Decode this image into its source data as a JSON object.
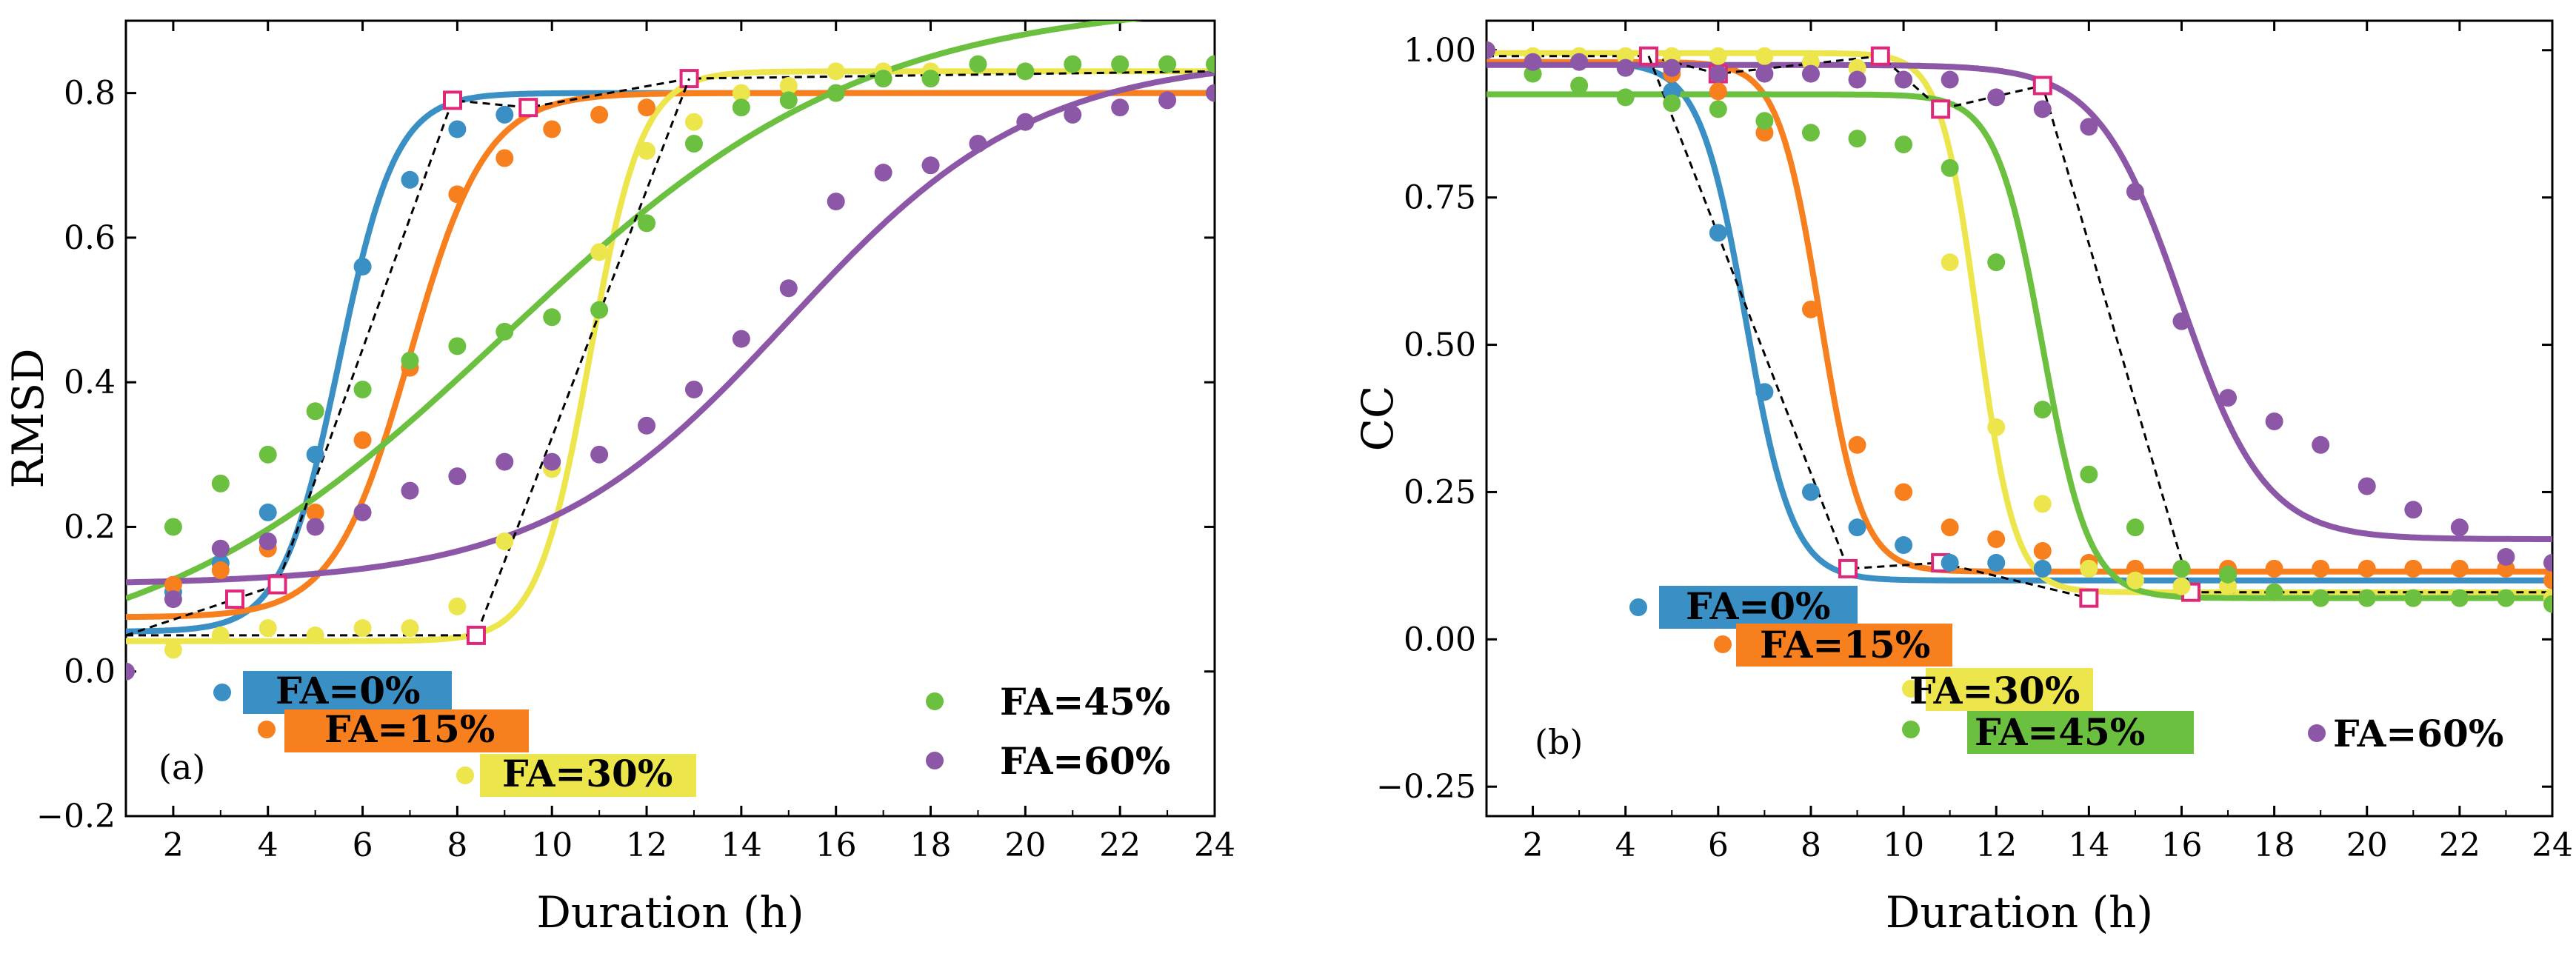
{
  "chart_data": [
    {
      "type": "scatter",
      "panel_label": "(a)",
      "xlabel": "Duration (h)",
      "ylabel": "RMSD",
      "xlim": [
        1,
        24
      ],
      "ylim": [
        -0.2,
        0.9
      ],
      "xticks": [
        2,
        4,
        6,
        8,
        10,
        12,
        14,
        16,
        18,
        20,
        22,
        24
      ],
      "yticks": [
        -0.2,
        0.0,
        0.2,
        0.4,
        0.6,
        0.8
      ],
      "ytick_labels": [
        "−0.2",
        "0.0",
        "0.2",
        "0.4",
        "0.6",
        "0.8"
      ],
      "fit_curves": true,
      "series": [
        {
          "name": "FA=0%",
          "color": "#3a8fc4",
          "legend_style": "box",
          "legend_bg": "#3a8fc4",
          "x": [
            2,
            3,
            4,
            5,
            6,
            7,
            8,
            9
          ],
          "y": [
            0.11,
            0.15,
            0.22,
            0.3,
            0.56,
            0.68,
            0.75,
            0.77
          ],
          "fit": {
            "base": 0.055,
            "top": 0.8,
            "mid": 5.5,
            "width": 0.6
          }
        },
        {
          "name": "FA=15%",
          "color": "#f77f1e",
          "legend_style": "box",
          "legend_bg": "#f77f1e",
          "x": [
            2,
            3,
            4,
            5,
            6,
            7,
            8,
            9,
            10,
            11,
            12
          ],
          "y": [
            0.12,
            0.14,
            0.17,
            0.22,
            0.32,
            0.42,
            0.66,
            0.71,
            0.75,
            0.77,
            0.78
          ],
          "fit": {
            "base": 0.075,
            "top": 0.8,
            "mid": 7.0,
            "width": 0.8
          }
        },
        {
          "name": "FA=30%",
          "color": "#ede54c",
          "legend_style": "box",
          "legend_bg": "#ede54c",
          "x": [
            2,
            3,
            4,
            5,
            6,
            7,
            8,
            9,
            10,
            11,
            12,
            13,
            14,
            15,
            16,
            17,
            18
          ],
          "y": [
            0.03,
            0.05,
            0.06,
            0.05,
            0.06,
            0.06,
            0.09,
            0.18,
            0.28,
            0.58,
            0.72,
            0.76,
            0.8,
            0.81,
            0.83,
            0.83,
            0.83
          ],
          "fit": {
            "base": 0.042,
            "top": 0.83,
            "mid": 10.8,
            "width": 0.55
          }
        },
        {
          "name": "FA=45%",
          "color": "#6cc03f",
          "legend_style": "plain",
          "x": [
            2,
            3,
            4,
            5,
            6,
            7,
            8,
            9,
            10,
            11,
            12,
            13,
            14,
            15,
            16,
            17,
            18,
            19,
            20,
            21,
            22,
            23,
            24
          ],
          "y": [
            0.2,
            0.26,
            0.3,
            0.36,
            0.39,
            0.43,
            0.45,
            0.47,
            0.49,
            0.5,
            0.62,
            0.73,
            0.78,
            0.79,
            0.8,
            0.82,
            0.82,
            0.84,
            0.83,
            0.84,
            0.84,
            0.84,
            0.84
          ],
          "fit": {
            "base": 0.0,
            "top": 0.93,
            "mid": 9.0,
            "width": 3.8
          }
        },
        {
          "name": "FA=60%",
          "color": "#8d57a8",
          "legend_style": "plain",
          "x": [
            1,
            2,
            3,
            4,
            5,
            6,
            7,
            8,
            9,
            10,
            11,
            12,
            13,
            14,
            15,
            16,
            17,
            18,
            19,
            20,
            21,
            22,
            23,
            24
          ],
          "y": [
            0.0,
            0.1,
            0.17,
            0.18,
            0.2,
            0.22,
            0.25,
            0.27,
            0.29,
            0.29,
            0.3,
            0.34,
            0.39,
            0.46,
            0.53,
            0.65,
            0.69,
            0.7,
            0.73,
            0.76,
            0.77,
            0.78,
            0.79,
            0.8
          ],
          "fit": {
            "base": 0.12,
            "top": 0.85,
            "mid": 15.0,
            "width": 2.6
          }
        }
      ],
      "stage_line": {
        "x": [
          1,
          3.3,
          4.2,
          7.9,
          9.5,
          12.9,
          24
        ],
        "y": [
          0.05,
          0.1,
          0.12,
          0.79,
          0.78,
          0.82,
          0.83
        ],
        "markers": [
          3.3,
          4.2,
          7.9,
          9.5,
          12.9
        ]
      },
      "stage_line_low": {
        "x": [
          1,
          8.4,
          12.9
        ],
        "y": [
          0.05,
          0.05,
          0.82
        ],
        "markers": [
          8.4
        ]
      }
    },
    {
      "type": "scatter",
      "panel_label": "(b)",
      "xlabel": "Duration (h)",
      "ylabel": "CC",
      "xlim": [
        1,
        24
      ],
      "ylim": [
        -0.3,
        1.05
      ],
      "xticks": [
        2,
        4,
        6,
        8,
        10,
        12,
        14,
        16,
        18,
        20,
        22,
        24
      ],
      "yticks": [
        -0.25,
        0.0,
        0.25,
        0.5,
        0.75,
        1.0
      ],
      "ytick_labels": [
        "−0.25",
        "0.00",
        "0.25",
        "0.50",
        "0.75",
        "1.00"
      ],
      "fit_curves": true,
      "series": [
        {
          "name": "FA=0%",
          "color": "#3a8fc4",
          "legend_style": "box",
          "legend_bg": "#3a8fc4",
          "x": [
            4,
            5,
            6,
            7,
            8,
            9,
            10,
            11,
            12,
            13,
            14
          ],
          "y": [
            0.97,
            0.93,
            0.69,
            0.42,
            0.25,
            0.19,
            0.16,
            0.13,
            0.13,
            0.12,
            0.12
          ],
          "fit": {
            "base": 0.1,
            "top": 0.98,
            "mid": 6.6,
            "width": 0.5
          }
        },
        {
          "name": "FA=15%",
          "color": "#f77f1e",
          "legend_style": "box",
          "legend_bg": "#f77f1e",
          "x": [
            5,
            6,
            7,
            8,
            9,
            10,
            11,
            12,
            13,
            14,
            15,
            16,
            17,
            18,
            19,
            20,
            21,
            22,
            23,
            24
          ],
          "y": [
            0.96,
            0.93,
            0.86,
            0.56,
            0.33,
            0.25,
            0.19,
            0.17,
            0.15,
            0.13,
            0.12,
            0.12,
            0.12,
            0.12,
            0.12,
            0.12,
            0.12,
            0.12,
            0.12,
            0.1
          ],
          "fit": {
            "base": 0.115,
            "top": 0.98,
            "mid": 8.2,
            "width": 0.45
          }
        },
        {
          "name": "FA=30%",
          "color": "#ede54c",
          "legend_style": "box",
          "legend_bg": "#ede54c",
          "x": [
            1,
            2,
            3,
            4,
            5,
            6,
            7,
            8,
            9,
            10,
            11,
            12,
            13,
            14,
            15,
            16,
            17,
            18,
            19,
            20,
            21,
            22,
            23,
            24
          ],
          "y": [
            1.0,
            0.99,
            0.99,
            0.99,
            0.99,
            0.99,
            0.99,
            0.98,
            0.97,
            0.95,
            0.64,
            0.36,
            0.23,
            0.12,
            0.1,
            0.09,
            0.09,
            0.08,
            0.07,
            0.07,
            0.07,
            0.07,
            0.07,
            0.07
          ],
          "fit": {
            "base": 0.08,
            "top": 0.995,
            "mid": 11.6,
            "width": 0.4
          }
        },
        {
          "name": "FA=45%",
          "color": "#6cc03f",
          "legend_style": "box",
          "legend_bg": "#6cc03f",
          "x": [
            2,
            3,
            4,
            5,
            6,
            7,
            8,
            9,
            10,
            11,
            12,
            13,
            14,
            15,
            16,
            17,
            18,
            19,
            20,
            21,
            22,
            23,
            24
          ],
          "y": [
            0.96,
            0.94,
            0.92,
            0.91,
            0.9,
            0.88,
            0.86,
            0.85,
            0.84,
            0.8,
            0.64,
            0.39,
            0.28,
            0.19,
            0.12,
            0.11,
            0.08,
            0.07,
            0.07,
            0.07,
            0.07,
            0.07,
            0.06
          ],
          "fit": {
            "base": 0.07,
            "top": 0.925,
            "mid": 13.0,
            "width": 0.5
          }
        },
        {
          "name": "FA=60%",
          "color": "#8d57a8",
          "legend_style": "plain",
          "x": [
            1,
            2,
            3,
            4,
            5,
            6,
            7,
            8,
            9,
            10,
            11,
            12,
            13,
            14,
            15,
            16,
            17,
            18,
            19,
            20,
            21,
            22,
            23,
            24
          ],
          "y": [
            1.0,
            0.98,
            0.98,
            0.97,
            0.97,
            0.96,
            0.96,
            0.96,
            0.95,
            0.95,
            0.95,
            0.92,
            0.9,
            0.87,
            0.76,
            0.54,
            0.41,
            0.37,
            0.33,
            0.26,
            0.22,
            0.19,
            0.14,
            0.13
          ],
          "fit": {
            "base": 0.17,
            "top": 0.975,
            "mid": 16.0,
            "width": 0.9
          }
        }
      ],
      "stage_line": {
        "x": [
          1,
          4.5,
          6.0,
          9.5,
          10.8,
          13.0,
          16.2,
          24
        ],
        "y": [
          0.99,
          0.99,
          0.96,
          0.99,
          0.9,
          0.94,
          0.08,
          0.08
        ],
        "markers": [
          4.5,
          6.0,
          9.5,
          10.8,
          13.0,
          16.2
        ]
      },
      "stage_line_low": {
        "x": [
          4.5,
          8.8,
          10.8,
          14.0
        ],
        "y": [
          0.99,
          0.12,
          0.13,
          0.07
        ],
        "markers": [
          8.8,
          10.8,
          14.0
        ]
      }
    }
  ]
}
